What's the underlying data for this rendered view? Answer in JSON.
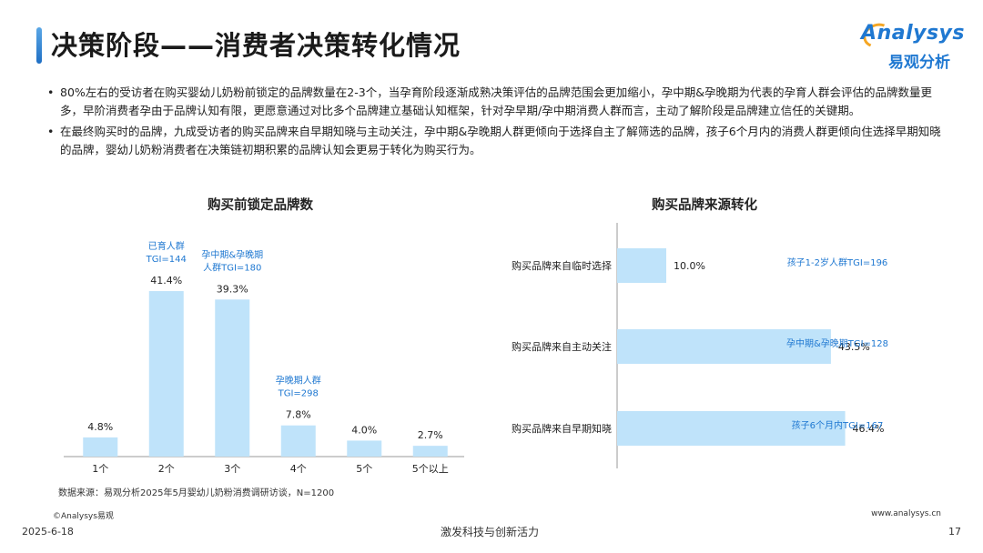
{
  "header": {
    "title": "决策阶段——消费者决策转化情况"
  },
  "logo": {
    "en": "Analysys",
    "cn": "易观分析"
  },
  "bullets": [
    "80%左右的受访者在购买婴幼儿奶粉前锁定的品牌数量在2-3个，当孕育阶段逐渐成熟决策评估的品牌范围会更加缩小，孕中期&孕晚期为代表的孕育人群会评估的品牌数量更多，早阶消费者孕由于品牌认知有限，更愿意通过对比多个品牌建立基础认知框架，针对孕早期/孕中期消费人群而言，主动了解阶段是品牌建立信任的关键期。",
    "在最终购买时的品牌，九成受访者的购买品牌来自早期知晓与主动关注，孕中期&孕晚期人群更倾向于选择自主了解筛选的品牌，孩子6个月内的消费人群更倾向住选择早期知晓的品牌，婴幼儿奶粉消费者在决策链初期积累的品牌认知会更易于转化为购买行为。"
  ],
  "colors": {
    "bar": "#bfe3fa",
    "annotation": "#1f78d1",
    "axis": "#999999"
  },
  "chart_data": [
    {
      "type": "bar",
      "title": "购买前锁定品牌数",
      "categories": [
        "1个",
        "2个",
        "3个",
        "4个",
        "5个",
        "5个以上"
      ],
      "values": [
        4.8,
        41.4,
        39.3,
        7.8,
        4.0,
        2.7
      ],
      "value_labels": [
        "4.8%",
        "41.4%",
        "39.3%",
        "7.8%",
        "4.0%",
        "2.7%"
      ],
      "annotations": [
        {
          "category": "2个",
          "lines": [
            "已育人群",
            "TGI=144"
          ]
        },
        {
          "category": "3个",
          "lines": [
            "孕中期&孕晚期",
            "人群TGI=180"
          ]
        },
        {
          "category": "4个",
          "lines": [
            "孕晚期人群",
            "TGI=298"
          ]
        }
      ],
      "ylim": [
        0,
        45
      ]
    },
    {
      "type": "bar",
      "orientation": "horizontal",
      "title": "购买品牌来源转化",
      "categories": [
        "购买品牌来自临时选择",
        "购买品牌来自主动关注",
        "购买品牌来自早期知晓"
      ],
      "values": [
        10.0,
        43.5,
        46.4
      ],
      "value_labels": [
        "10.0%",
        "43.5%",
        "46.4%"
      ],
      "annotations": [
        "孩子1-2岁人群TGI=196",
        "孕中期&孕晚期TGI=128",
        "孩子6个月内TGI=167"
      ],
      "xlim": [
        0,
        50
      ]
    }
  ],
  "source": "数据来源：易观分析2025年5月婴幼儿奶粉消费调研访谈，N=1200",
  "footer": {
    "copyright": "©Analysys易观",
    "website": "www.analysys.cn",
    "date": "2025-6-18",
    "slogan": "激发科技与创新活力",
    "page": "17"
  }
}
